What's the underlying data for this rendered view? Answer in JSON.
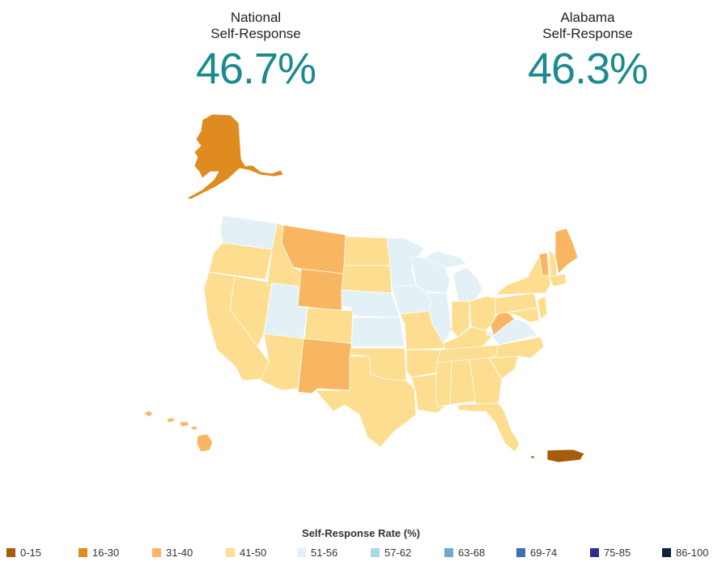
{
  "national": {
    "label_line1": "National",
    "label_line2": "Self-Response",
    "value": "46.7%"
  },
  "state": {
    "label_line1": "Alabama",
    "label_line2": "Self-Response",
    "value": "46.3%"
  },
  "map": {
    "bins": {
      "b0_15": "#a65c0a",
      "b16_30": "#e08b1f",
      "b31_40": "#f9b662",
      "b41_50": "#fddd8f",
      "b51_56": "#e3f1f6",
      "b57_62": "#a9d8e8",
      "b63_68": "#6fa8d0",
      "b69_74": "#3c6fb5",
      "b75_85": "#2b2f8a",
      "b86_100": "#0f2240"
    },
    "regions": [
      {
        "name": "Alaska",
        "bin": "16-30"
      },
      {
        "name": "Hawaii",
        "bin": "31-40"
      },
      {
        "name": "Puerto Rico",
        "bin": "0-15"
      },
      {
        "name": "Washington",
        "bin": "51-56"
      },
      {
        "name": "Oregon",
        "bin": "41-50"
      },
      {
        "name": "California",
        "bin": "41-50"
      },
      {
        "name": "Nevada",
        "bin": "41-50"
      },
      {
        "name": "Idaho",
        "bin": "41-50"
      },
      {
        "name": "Montana",
        "bin": "31-40"
      },
      {
        "name": "Wyoming",
        "bin": "31-40"
      },
      {
        "name": "Utah",
        "bin": "51-56"
      },
      {
        "name": "Arizona",
        "bin": "41-50"
      },
      {
        "name": "Colorado",
        "bin": "41-50"
      },
      {
        "name": "New Mexico",
        "bin": "31-40"
      },
      {
        "name": "North Dakota",
        "bin": "41-50"
      },
      {
        "name": "South Dakota",
        "bin": "41-50"
      },
      {
        "name": "Nebraska",
        "bin": "51-56"
      },
      {
        "name": "Kansas",
        "bin": "51-56"
      },
      {
        "name": "Oklahoma",
        "bin": "41-50"
      },
      {
        "name": "Texas",
        "bin": "41-50"
      },
      {
        "name": "Minnesota",
        "bin": "51-56"
      },
      {
        "name": "Iowa",
        "bin": "51-56"
      },
      {
        "name": "Missouri",
        "bin": "41-50"
      },
      {
        "name": "Arkansas",
        "bin": "41-50"
      },
      {
        "name": "Louisiana",
        "bin": "41-50"
      },
      {
        "name": "Wisconsin",
        "bin": "51-56"
      },
      {
        "name": "Illinois",
        "bin": "51-56"
      },
      {
        "name": "Michigan",
        "bin": "51-56"
      },
      {
        "name": "Indiana",
        "bin": "41-50"
      },
      {
        "name": "Ohio",
        "bin": "41-50"
      },
      {
        "name": "Kentucky",
        "bin": "41-50"
      },
      {
        "name": "Tennessee",
        "bin": "41-50"
      },
      {
        "name": "Mississippi",
        "bin": "41-50"
      },
      {
        "name": "Alabama",
        "bin": "41-50"
      },
      {
        "name": "Georgia",
        "bin": "41-50"
      },
      {
        "name": "Florida",
        "bin": "41-50"
      },
      {
        "name": "South Carolina",
        "bin": "41-50"
      },
      {
        "name": "North Carolina",
        "bin": "41-50"
      },
      {
        "name": "Virginia",
        "bin": "51-56"
      },
      {
        "name": "West Virginia",
        "bin": "31-40"
      },
      {
        "name": "Pennsylvania",
        "bin": "41-50"
      },
      {
        "name": "New York",
        "bin": "41-50"
      },
      {
        "name": "Maryland",
        "bin": "41-50"
      },
      {
        "name": "New Jersey",
        "bin": "41-50"
      },
      {
        "name": "Vermont",
        "bin": "31-40"
      },
      {
        "name": "New Hampshire",
        "bin": "41-50"
      },
      {
        "name": "Maine",
        "bin": "31-40"
      },
      {
        "name": "Massachusetts",
        "bin": "41-50"
      }
    ]
  },
  "legend": {
    "title": "Self-Response Rate (%)",
    "items": [
      {
        "label": "0-15",
        "color": "#a65c0a"
      },
      {
        "label": "16-30",
        "color": "#e08b1f"
      },
      {
        "label": "31-40",
        "color": "#f9b662"
      },
      {
        "label": "41-50",
        "color": "#fddd8f"
      },
      {
        "label": "51-56",
        "color": "#e3f1f6"
      },
      {
        "label": "57-62",
        "color": "#a9d8e8"
      },
      {
        "label": "63-68",
        "color": "#6fa8d0"
      },
      {
        "label": "69-74",
        "color": "#3c6fb5"
      },
      {
        "label": "75-85",
        "color": "#2b2f8a"
      },
      {
        "label": "86-100",
        "color": "#0f2240"
      }
    ]
  }
}
